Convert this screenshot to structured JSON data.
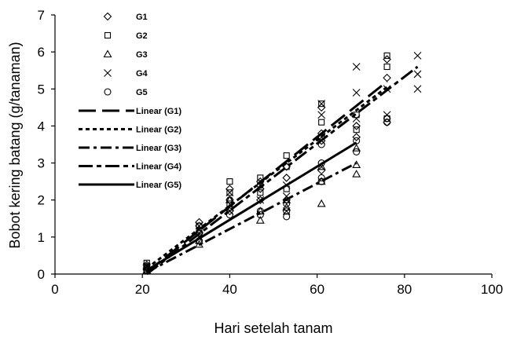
{
  "chart_data": {
    "type": "scatter",
    "xlabel": "Hari setelah tanam",
    "ylabel": "Bobot kering batang (g/tanaman)",
    "xlim": [
      0,
      100
    ],
    "ylim": [
      0,
      7
    ],
    "xticks": [
      0,
      20,
      40,
      60,
      80,
      100
    ],
    "yticks": [
      0,
      1,
      2,
      3,
      4,
      5,
      6,
      7
    ],
    "grid": false,
    "legend_position": "top-left",
    "series": [
      {
        "name": "G1",
        "marker": "diamond",
        "points": [
          [
            21,
            0.25
          ],
          [
            21,
            0.15
          ],
          [
            33,
            1.4
          ],
          [
            33,
            1.3
          ],
          [
            33,
            1.1
          ],
          [
            40,
            2.3
          ],
          [
            40,
            2.0
          ],
          [
            40,
            1.7
          ],
          [
            47,
            2.5
          ],
          [
            47,
            2.3
          ],
          [
            47,
            2.0
          ],
          [
            53,
            2.9
          ],
          [
            53,
            2.6
          ],
          [
            53,
            2.0
          ],
          [
            61,
            4.5
          ],
          [
            61,
            3.8
          ],
          [
            61,
            3.6
          ],
          [
            61,
            2.8
          ],
          [
            69,
            4.0
          ],
          [
            69,
            3.7
          ],
          [
            76,
            5.8
          ],
          [
            76,
            5.3
          ],
          [
            76,
            4.1
          ]
        ]
      },
      {
        "name": "G2",
        "marker": "square",
        "points": [
          [
            21,
            0.3
          ],
          [
            21,
            0.2
          ],
          [
            33,
            1.3
          ],
          [
            33,
            1.1
          ],
          [
            40,
            2.5
          ],
          [
            40,
            2.2
          ],
          [
            40,
            1.9
          ],
          [
            47,
            2.6
          ],
          [
            47,
            2.2
          ],
          [
            53,
            3.2
          ],
          [
            53,
            2.9
          ],
          [
            53,
            2.3
          ],
          [
            61,
            4.6
          ],
          [
            61,
            4.1
          ],
          [
            61,
            3.7
          ],
          [
            69,
            4.3
          ],
          [
            69,
            3.9
          ],
          [
            76,
            5.9
          ],
          [
            76,
            5.6
          ],
          [
            76,
            4.2
          ]
        ]
      },
      {
        "name": "G3",
        "marker": "triangle",
        "points": [
          [
            21,
            0.2
          ],
          [
            21,
            0.1
          ],
          [
            33,
            1.2
          ],
          [
            33,
            0.9
          ],
          [
            33,
            0.8
          ],
          [
            40,
            2.0
          ],
          [
            40,
            1.8
          ],
          [
            47,
            1.7
          ],
          [
            47,
            1.45
          ],
          [
            53,
            2.0
          ],
          [
            53,
            1.8
          ],
          [
            61,
            2.9
          ],
          [
            61,
            2.5
          ],
          [
            61,
            1.9
          ],
          [
            69,
            3.4
          ],
          [
            69,
            2.95
          ],
          [
            69,
            2.7
          ]
        ]
      },
      {
        "name": "G4",
        "marker": "x",
        "points": [
          [
            21,
            0.2
          ],
          [
            21,
            0.1
          ],
          [
            33,
            1.3
          ],
          [
            33,
            1.0
          ],
          [
            40,
            2.2
          ],
          [
            40,
            1.7
          ],
          [
            47,
            2.4
          ],
          [
            47,
            2.0
          ],
          [
            53,
            2.4
          ],
          [
            53,
            2.1
          ],
          [
            53,
            1.7
          ],
          [
            61,
            4.6
          ],
          [
            61,
            4.3
          ],
          [
            61,
            3.6
          ],
          [
            69,
            5.6
          ],
          [
            69,
            4.9
          ],
          [
            69,
            4.2
          ],
          [
            76,
            5.0
          ],
          [
            76,
            4.3
          ],
          [
            83,
            5.9
          ],
          [
            83,
            5.4
          ],
          [
            83,
            5.0
          ]
        ]
      },
      {
        "name": "G5",
        "marker": "circle",
        "points": [
          [
            21,
            0.2
          ],
          [
            21,
            0.1
          ],
          [
            33,
            1.1
          ],
          [
            33,
            0.9
          ],
          [
            40,
            2.0
          ],
          [
            40,
            1.6
          ],
          [
            47,
            2.4
          ],
          [
            47,
            1.7
          ],
          [
            47,
            1.6
          ],
          [
            53,
            1.9
          ],
          [
            53,
            1.7
          ],
          [
            53,
            1.55
          ],
          [
            61,
            3.5
          ],
          [
            61,
            3.0
          ],
          [
            61,
            2.6
          ],
          [
            61,
            2.5
          ],
          [
            69,
            3.6
          ],
          [
            69,
            3.3
          ],
          [
            76,
            4.2
          ],
          [
            76,
            4.1
          ]
        ]
      }
    ],
    "trendlines": [
      {
        "name": "Linear (G1)",
        "style": "long-dash",
        "x": [
          21,
          76
        ],
        "y": [
          0.05,
          5.2
        ]
      },
      {
        "name": "Linear (G2)",
        "style": "short-dash",
        "x": [
          21,
          76
        ],
        "y": [
          0.15,
          5.05
        ]
      },
      {
        "name": "Linear (G3)",
        "style": "dash-dot",
        "x": [
          21,
          69
        ],
        "y": [
          0.05,
          3.0
        ]
      },
      {
        "name": "Linear (G4)",
        "style": "long-dash-dot",
        "x": [
          21,
          83
        ],
        "y": [
          0.0,
          5.6
        ]
      },
      {
        "name": "Linear (G5)",
        "style": "solid",
        "x": [
          21,
          69
        ],
        "y": [
          0.1,
          3.55
        ]
      }
    ]
  }
}
